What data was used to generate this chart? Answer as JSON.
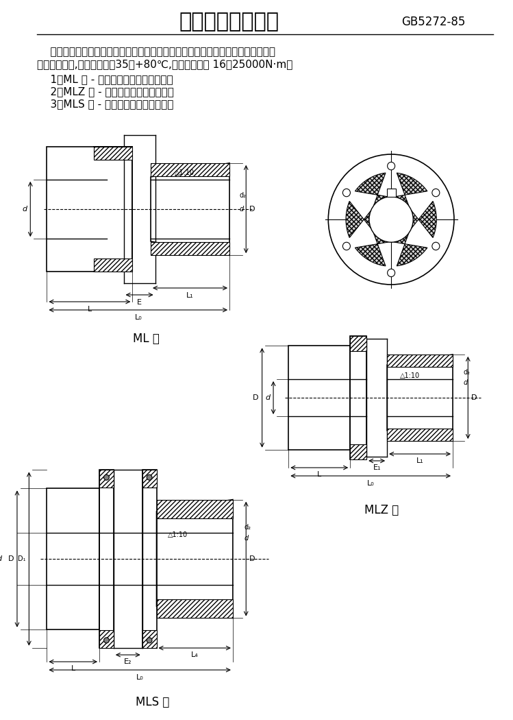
{
  "title": "梅花形弹性联轴器",
  "standard": "GB5272-85",
  "description_line1": "    梅花形弹性联轴器，适用于联接两同轴线的传动轴系，具有补偿两轴相对偏移、减",
  "description_line2": "震、缓冲性能,工作温度为－35～+80℃,传递公称转矩 16～25000N·m。",
  "items": [
    "    1、ML 型 - 基本型梅花形弹性联轴器。",
    "    2、MLZ 型 - 单法兰梅花弹性联轴器。",
    "    3、MLS 型 - 双法兰梅花弹性联轴器。"
  ],
  "label_ML": "ML 型",
  "label_MLZ": "MLZ 型",
  "label_MLS": "MLS 型",
  "bg_color": "#ffffff",
  "text_color": "#000000",
  "line_color": "#000000",
  "hatch_color": "#000000",
  "title_fontsize": 22,
  "standard_fontsize": 12,
  "body_fontsize": 11,
  "label_fontsize": 12
}
